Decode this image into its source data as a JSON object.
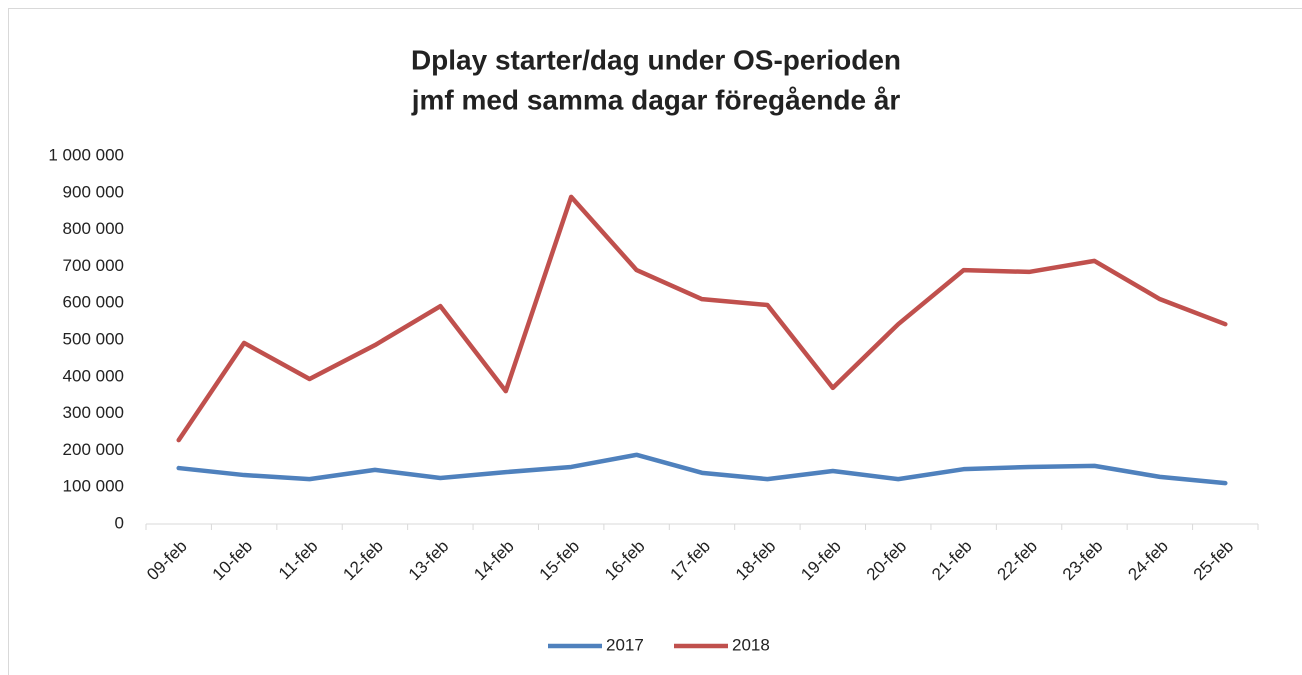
{
  "chart_data": {
    "type": "line",
    "title": [
      "Dplay starter/dag under OS-perioden",
      "jmf med samma dagar föregående år"
    ],
    "categories": [
      "09-feb",
      "10-feb",
      "11-feb",
      "12-feb",
      "13-feb",
      "14-feb",
      "15-feb",
      "16-feb",
      "17-feb",
      "18-feb",
      "19-feb",
      "20-feb",
      "21-feb",
      "22-feb",
      "23-feb",
      "24-feb",
      "25-feb"
    ],
    "series": [
      {
        "name": "2017",
        "color": "#4f81bd",
        "values": [
          152000,
          133000,
          122000,
          147000,
          125000,
          141000,
          155000,
          188000,
          139000,
          122000,
          144000,
          122000,
          149000,
          155000,
          158000,
          128000,
          111000
        ]
      },
      {
        "name": "2018",
        "color": "#c0504d",
        "values": [
          228000,
          492000,
          394000,
          486000,
          592000,
          361000,
          889000,
          690000,
          611000,
          595000,
          370000,
          543000,
          690000,
          685000,
          715000,
          611000,
          543000
        ]
      }
    ],
    "ylim": [
      0,
      1000000
    ],
    "yticks": [
      0,
      {
        "value": 100000,
        "label": "100 000"
      },
      {
        "value": 200000,
        "label": "200 000"
      },
      {
        "value": 300000,
        "label": "300 000"
      },
      {
        "value": 400000,
        "label": "400 000"
      },
      {
        "value": 500000,
        "label": "500 000"
      },
      {
        "value": 600000,
        "label": "600 000"
      },
      {
        "value": 700000,
        "label": "700 000"
      },
      {
        "value": 800000,
        "label": "800 000"
      },
      {
        "value": 900000,
        "label": "900 000"
      },
      {
        "value": 1000000,
        "label": "1 000 000"
      }
    ],
    "legend": "bottom",
    "grid": false
  }
}
